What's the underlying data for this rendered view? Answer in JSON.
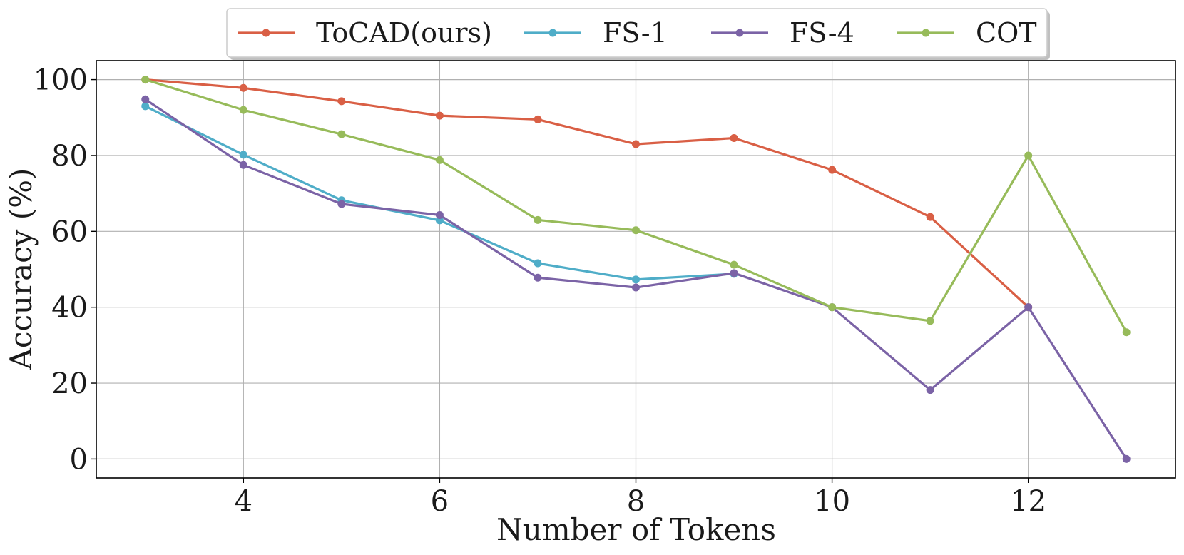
{
  "chart_data": {
    "type": "line",
    "title": "",
    "xlabel": "Number of Tokens",
    "ylabel": "Accuracy (%)",
    "xlim": [
      2.5,
      13.5
    ],
    "ylim": [
      -5,
      105
    ],
    "xticks": [
      4,
      6,
      8,
      10,
      12
    ],
    "yticks": [
      0,
      20,
      40,
      60,
      80,
      100
    ],
    "grid": true,
    "legend_position": "top-center",
    "series": [
      {
        "name": "ToCAD(ours)",
        "color": "#d95f45",
        "x": [
          3,
          4,
          5,
          6,
          7,
          8,
          9,
          10,
          11,
          12
        ],
        "y": [
          100,
          97.8,
          94.3,
          90.5,
          89.5,
          83,
          84.6,
          76.2,
          63.8,
          40
        ]
      },
      {
        "name": "FS-1",
        "color": "#4fadc8",
        "x": [
          3,
          4,
          5,
          6,
          7,
          8,
          9
        ],
        "y": [
          93,
          80.2,
          68.2,
          62.9,
          51.6,
          47.3,
          48.8
        ]
      },
      {
        "name": "FS-4",
        "color": "#7b63a6",
        "x": [
          3,
          4,
          5,
          6,
          7,
          8,
          9,
          10,
          11,
          12,
          13
        ],
        "y": [
          94.8,
          77.5,
          67.2,
          64.3,
          47.8,
          45.2,
          49,
          40,
          18.2,
          40,
          0
        ]
      },
      {
        "name": "COT",
        "color": "#97bb5a",
        "x": [
          3,
          4,
          5,
          6,
          7,
          8,
          9,
          10,
          11,
          12,
          13
        ],
        "y": [
          100,
          92,
          85.6,
          78.8,
          63,
          60.3,
          51.2,
          40,
          36.4,
          80,
          33.4
        ]
      }
    ]
  }
}
